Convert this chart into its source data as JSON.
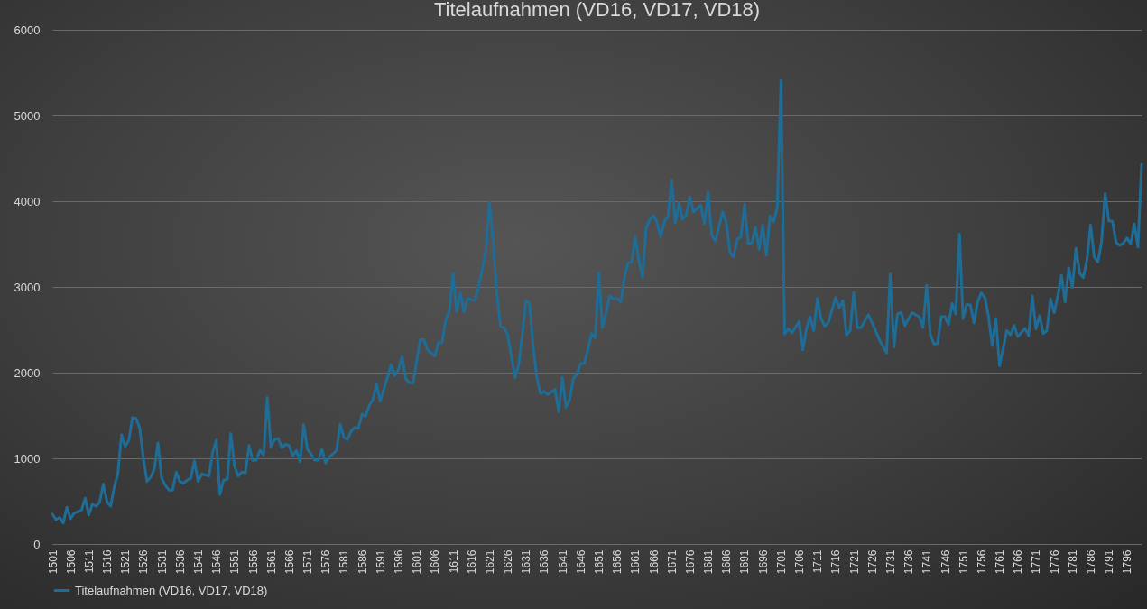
{
  "chart_data": {
    "type": "line",
    "title": "Titelaufnahmen (VD16, VD17, VD18)",
    "x": [
      1501,
      1502,
      1503,
      1504,
      1505,
      1506,
      1507,
      1509,
      1510,
      1511,
      1512,
      1513,
      1514,
      1515,
      1516,
      1517,
      1518,
      1519,
      1520,
      1521,
      1522,
      1523,
      1524,
      1525,
      1526,
      1527,
      1528,
      1529,
      1530,
      1531,
      1532,
      1533,
      1534,
      1535,
      1536,
      1537,
      1538,
      1539,
      1540,
      1541,
      1542,
      1544,
      1545,
      1546,
      1547,
      1548,
      1549,
      1550,
      1551,
      1552,
      1553,
      1554,
      1555,
      1556,
      1557,
      1558,
      1559,
      1560,
      1561,
      1562,
      1563,
      1564,
      1565,
      1566,
      1567,
      1568,
      1569,
      1570,
      1571,
      1572,
      1573,
      1574,
      1575,
      1576,
      1577,
      1578,
      1579,
      1580,
      1581,
      1582,
      1583,
      1584,
      1585,
      1586,
      1587,
      1588,
      1589,
      1590,
      1591,
      1594,
      1595,
      1596,
      1597,
      1598,
      1599,
      1600,
      1602,
      1603,
      1604,
      1606,
      1607,
      1608,
      1609,
      1610,
      1611,
      1612,
      1613,
      1614,
      1615,
      1617,
      1618,
      1619,
      1620,
      1621,
      1622,
      1623,
      1624,
      1625,
      1626,
      1627,
      1628,
      1629,
      1630,
      1631,
      1632,
      1633,
      1634,
      1635,
      1636,
      1637,
      1639,
      1640,
      1641,
      1642,
      1643,
      1644,
      1645,
      1646,
      1647,
      1648,
      1649,
      1650,
      1651,
      1652,
      1653,
      1654,
      1655,
      1656,
      1657,
      1658,
      1659,
      1660,
      1661,
      1662,
      1663,
      1664,
      1665,
      1666,
      1667,
      1668,
      1669,
      1670,
      1671,
      1672,
      1673,
      1674,
      1675,
      1676,
      1677,
      1679,
      1680,
      1681,
      1682,
      1683,
      1685,
      1686,
      1687,
      1688,
      1689,
      1690,
      1691,
      1692,
      1693,
      1694,
      1695,
      1696,
      1697,
      1698,
      1699,
      1700,
      1701,
      1702,
      1703,
      1704,
      1706,
      1707,
      1708,
      1709,
      1710,
      1711,
      1712,
      1713,
      1714,
      1716,
      1717,
      1718,
      1719,
      1720,
      1721,
      1722,
      1723,
      1725,
      1727,
      1728,
      1730,
      1731,
      1732,
      1733,
      1734,
      1735,
      1737,
      1739,
      1740,
      1741,
      1742,
      1743,
      1744,
      1745,
      1746,
      1747,
      1748,
      1749,
      1750,
      1751,
      1752,
      1753,
      1754,
      1755,
      1756,
      1757,
      1758,
      1759,
      1760,
      1761,
      1763,
      1764,
      1765,
      1766,
      1768,
      1769,
      1770,
      1771,
      1772,
      1773,
      1774,
      1775,
      1776,
      1777,
      1778,
      1779,
      1780,
      1781,
      1782,
      1783,
      1784,
      1785,
      1786,
      1787,
      1788,
      1789,
      1790,
      1791,
      1792,
      1793,
      1794,
      1795,
      1796,
      1797,
      1798,
      1799,
      1800
    ],
    "series": [
      {
        "name": "Titelaufnahmen (VD16, VD17, VD18)",
        "color": "#1f6d96",
        "values": [
          350,
          285,
          310,
          245,
          430,
          295,
          360,
          395,
          535,
          340,
          465,
          440,
          490,
          700,
          495,
          440,
          665,
          825,
          1275,
          1140,
          1210,
          1475,
          1465,
          1350,
          1000,
          730,
          780,
          875,
          1180,
          770,
          685,
          630,
          630,
          840,
          730,
          710,
          745,
          770,
          970,
          730,
          815,
          795,
          1070,
          1210,
          580,
          745,
          755,
          1290,
          910,
          795,
          840,
          830,
          1150,
          975,
          980,
          1095,
          1040,
          1710,
          1135,
          1220,
          1230,
          1125,
          1165,
          1150,
          1030,
          1090,
          960,
          1395,
          1105,
          1050,
          980,
          980,
          1105,
          945,
          1015,
          1050,
          1090,
          1400,
          1245,
          1220,
          1315,
          1360,
          1350,
          1515,
          1490,
          1615,
          1685,
          1870,
          1665,
          2090,
          1965,
          2035,
          2185,
          1930,
          1885,
          1875,
          2385,
          2385,
          2265,
          2195,
          2350,
          2350,
          2615,
          2720,
          3160,
          2710,
          2930,
          2710,
          2865,
          2840,
          3000,
          3210,
          3420,
          3990,
          3525,
          2930,
          2545,
          2525,
          2440,
          2195,
          1940,
          2090,
          2440,
          2840,
          2805,
          2300,
          1945,
          1755,
          1780,
          1745,
          1805,
          1545,
          1945,
          1595,
          1685,
          1930,
          1980,
          2105,
          2105,
          2265,
          2455,
          2405,
          3160,
          2525,
          2700,
          2895,
          2860,
          2870,
          2825,
          3090,
          3280,
          3290,
          3590,
          3315,
          3110,
          3685,
          3790,
          3835,
          3755,
          3580,
          3765,
          3825,
          4245,
          3745,
          3985,
          3790,
          3840,
          4050,
          3875,
          3955,
          3735,
          4105,
          3605,
          3535,
          3875,
          3755,
          3405,
          3350,
          3555,
          3580,
          3965,
          3510,
          3510,
          3695,
          3440,
          3720,
          3370,
          3825,
          3765,
          3930,
          5405,
          2450,
          2510,
          2465,
          2595,
          2265,
          2510,
          2650,
          2490,
          2865,
          2630,
          2545,
          2580,
          2875,
          2755,
          2840,
          2440,
          2490,
          2935,
          2525,
          2525,
          2675,
          2490,
          2385,
          2230,
          3150,
          2300,
          2685,
          2700,
          2550,
          2700,
          2650,
          2525,
          3020,
          2445,
          2335,
          2340,
          2650,
          2655,
          2560,
          2805,
          2685,
          3615,
          2630,
          2795,
          2790,
          2580,
          2825,
          2930,
          2875,
          2650,
          2315,
          2630,
          2080,
          2490,
          2440,
          2550,
          2420,
          2515,
          2430,
          2895,
          2510,
          2665,
          2455,
          2490,
          2860,
          2700,
          2895,
          3135,
          2825,
          3220,
          2995,
          3450,
          3160,
          3110,
          3315,
          3720,
          3350,
          3290,
          3525,
          4090,
          3770,
          3765,
          3520,
          3485,
          3510,
          3570,
          3500,
          3735,
          3465,
          4430
        ]
      }
    ],
    "xlim": [
      1501,
      1800
    ],
    "xticks": [
      1501,
      1506,
      1511,
      1516,
      1521,
      1526,
      1531,
      1536,
      1541,
      1546,
      1551,
      1556,
      1561,
      1566,
      1571,
      1576,
      1581,
      1586,
      1591,
      1596,
      1601,
      1606,
      1611,
      1616,
      1621,
      1626,
      1631,
      1636,
      1641,
      1646,
      1651,
      1656,
      1661,
      1666,
      1671,
      1676,
      1681,
      1686,
      1691,
      1696,
      1701,
      1706,
      1711,
      1716,
      1721,
      1726,
      1731,
      1736,
      1741,
      1746,
      1751,
      1756,
      1761,
      1766,
      1771,
      1776,
      1781,
      1786,
      1791,
      1796
    ],
    "ylim": [
      0,
      6000
    ],
    "yticks": [
      0,
      1000,
      2000,
      3000,
      4000,
      5000,
      6000
    ],
    "grid": "y",
    "legend": "bottom",
    "marker": "none",
    "line_style": "solid"
  }
}
